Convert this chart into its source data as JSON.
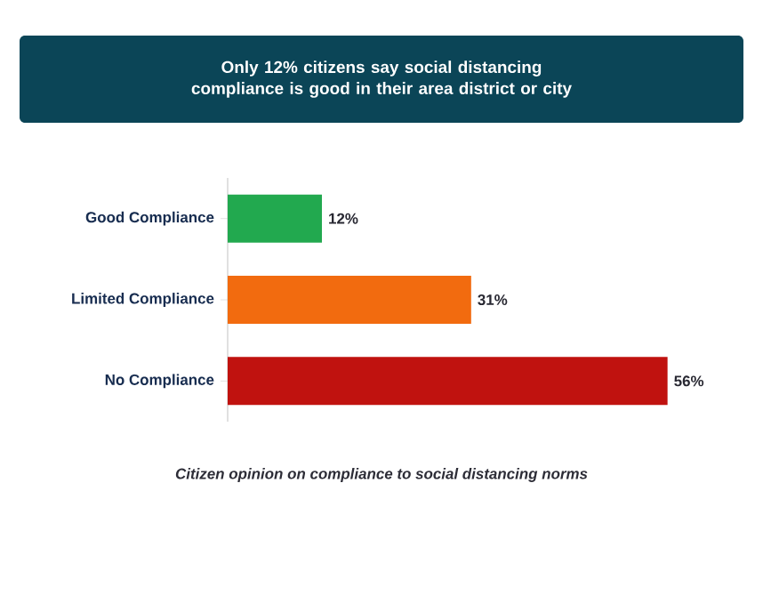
{
  "chart_data": {
    "type": "bar",
    "orientation": "horizontal",
    "title": "Only 12% citizens say social distancing compliance is good in their area district or city",
    "categories": [
      "Good Compliance",
      "Limited Compliance",
      "No Compliance"
    ],
    "values": [
      12,
      31,
      56
    ],
    "colors": [
      "#22a94f",
      "#f26b0f",
      "#c0120f"
    ],
    "value_labels": [
      "12%",
      "31%",
      "56%"
    ],
    "annotations": [
      "Citizen opinion on compliance to social distancing norms"
    ],
    "tick_labels": "y"
  }
}
